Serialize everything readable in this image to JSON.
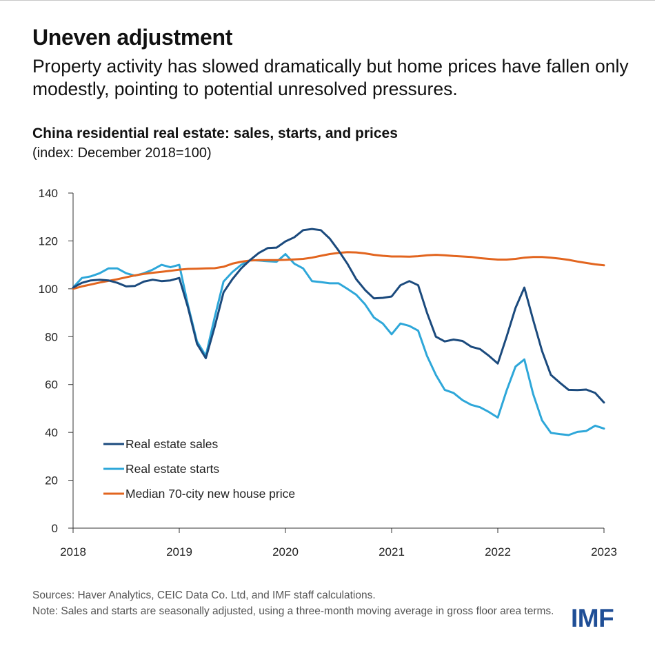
{
  "header": {
    "title": "Uneven adjustment",
    "subtitle": "Property activity has slowed dramatically but home prices have fallen only modestly, pointing to potential unresolved pressures."
  },
  "footer": {
    "sources": "Sources: Haver Analytics, CEIC Data Co. Ltd, and IMF staff calculations.",
    "note": "Note: Sales and starts are seasonally adjusted, using a three-month moving average in gross floor area terms.",
    "logo": "IMF"
  },
  "chart_data": {
    "type": "line",
    "title": "China residential real estate: sales, starts, and prices",
    "subtitle": "(index: December 2018=100)",
    "xlabel": "",
    "ylabel": "",
    "xlim": [
      2018,
      2023
    ],
    "ylim": [
      0,
      140
    ],
    "x_ticks": [
      "2018",
      "2019",
      "2020",
      "2021",
      "2022",
      "2023"
    ],
    "y_ticks": [
      "0",
      "20",
      "40",
      "60",
      "80",
      "100",
      "120",
      "140"
    ],
    "grid": false,
    "legend_position": "bottom-left",
    "series": [
      {
        "name": "Real estate sales",
        "color": "#1b4a7d",
        "x": [
          2018.0,
          2018.083,
          2018.167,
          2018.25,
          2018.333,
          2018.417,
          2018.5,
          2018.583,
          2018.667,
          2018.75,
          2018.833,
          2018.917,
          2019.0,
          2019.083,
          2019.167,
          2019.25,
          2019.333,
          2019.417,
          2019.5,
          2019.583,
          2019.667,
          2019.75,
          2019.833,
          2019.917,
          2020.0,
          2020.083,
          2020.167,
          2020.25,
          2020.333,
          2020.417,
          2020.5,
          2020.583,
          2020.667,
          2020.75,
          2020.833,
          2020.917,
          2021.0,
          2021.083,
          2021.167,
          2021.25,
          2021.333,
          2021.417,
          2021.5,
          2021.583,
          2021.667,
          2021.75,
          2021.833,
          2021.917,
          2022.0,
          2022.083,
          2022.167,
          2022.25,
          2022.333,
          2022.417,
          2022.5,
          2022.583,
          2022.667,
          2022.75,
          2022.833,
          2022.917,
          2023.0
        ],
        "values": [
          100.5,
          102.5,
          103.5,
          103.8,
          103.5,
          102.5,
          101.0,
          101.2,
          103.0,
          103.8,
          103.2,
          103.5,
          104.5,
          92.0,
          77.0,
          71.0,
          84.0,
          98.5,
          104.0,
          108.5,
          112.0,
          115.0,
          117.0,
          117.2,
          119.8,
          121.5,
          124.5,
          125.0,
          124.5,
          121.0,
          116.0,
          110.5,
          104.0,
          99.5,
          96.0,
          96.2,
          96.8,
          101.5,
          103.2,
          101.5,
          90.0,
          80.0,
          78.0,
          78.8,
          78.2,
          75.8,
          74.8,
          72.0,
          68.8,
          80.0,
          92.0,
          100.5,
          87.0,
          74.0,
          64.0,
          60.8,
          57.8,
          57.7,
          57.9,
          56.5,
          52.5
        ]
      },
      {
        "name": "Real estate starts",
        "color": "#2ea7d9",
        "x": [
          2018.0,
          2018.083,
          2018.167,
          2018.25,
          2018.333,
          2018.417,
          2018.5,
          2018.583,
          2018.667,
          2018.75,
          2018.833,
          2018.917,
          2019.0,
          2019.083,
          2019.167,
          2019.25,
          2019.333,
          2019.417,
          2019.5,
          2019.583,
          2019.667,
          2019.75,
          2019.833,
          2019.917,
          2020.0,
          2020.083,
          2020.167,
          2020.25,
          2020.333,
          2020.417,
          2020.5,
          2020.583,
          2020.667,
          2020.75,
          2020.833,
          2020.917,
          2021.0,
          2021.083,
          2021.167,
          2021.25,
          2021.333,
          2021.417,
          2021.5,
          2021.583,
          2021.667,
          2021.75,
          2021.833,
          2021.917,
          2022.0,
          2022.083,
          2022.167,
          2022.25,
          2022.333,
          2022.417,
          2022.5,
          2022.583,
          2022.667,
          2022.75,
          2022.833,
          2022.917,
          2023.0
        ],
        "values": [
          100.5,
          104.5,
          105.2,
          106.5,
          108.5,
          108.5,
          106.5,
          105.5,
          106.5,
          108.0,
          110.0,
          109.0,
          110.0,
          93.0,
          78.0,
          72.0,
          88.0,
          103.0,
          107.0,
          110.0,
          112.0,
          111.8,
          111.5,
          111.3,
          114.5,
          110.5,
          108.5,
          103.2,
          102.8,
          102.3,
          102.3,
          100.0,
          97.5,
          93.5,
          88.0,
          85.5,
          81.0,
          85.5,
          84.5,
          82.5,
          72.0,
          64.0,
          57.8,
          56.5,
          53.5,
          51.5,
          50.5,
          48.5,
          46.2,
          57.5,
          67.5,
          70.5,
          56.0,
          45.0,
          39.8,
          39.3,
          38.9,
          40.2,
          40.6,
          42.8,
          41.6
        ]
      },
      {
        "name": "Median 70-city new house price",
        "color": "#e2651f",
        "x": [
          2018.0,
          2018.083,
          2018.167,
          2018.25,
          2018.333,
          2018.417,
          2018.5,
          2018.583,
          2018.667,
          2018.75,
          2018.833,
          2018.917,
          2019.0,
          2019.083,
          2019.167,
          2019.25,
          2019.333,
          2019.417,
          2019.5,
          2019.583,
          2019.667,
          2019.75,
          2019.833,
          2019.917,
          2020.0,
          2020.083,
          2020.167,
          2020.25,
          2020.333,
          2020.417,
          2020.5,
          2020.583,
          2020.667,
          2020.75,
          2020.833,
          2020.917,
          2021.0,
          2021.083,
          2021.167,
          2021.25,
          2021.333,
          2021.417,
          2021.5,
          2021.583,
          2021.667,
          2021.75,
          2021.833,
          2021.917,
          2022.0,
          2022.083,
          2022.167,
          2022.25,
          2022.333,
          2022.417,
          2022.5,
          2022.583,
          2022.667,
          2022.75,
          2022.833,
          2022.917,
          2023.0
        ],
        "values": [
          100.0,
          101.0,
          101.8,
          102.6,
          103.3,
          104.0,
          104.8,
          105.6,
          106.2,
          106.7,
          107.1,
          107.5,
          108.0,
          108.3,
          108.4,
          108.5,
          108.6,
          109.2,
          110.5,
          111.3,
          111.8,
          112.0,
          112.0,
          112.0,
          112.1,
          112.3,
          112.5,
          113.0,
          113.8,
          114.5,
          115.0,
          115.3,
          115.2,
          114.8,
          114.2,
          113.8,
          113.5,
          113.5,
          113.4,
          113.6,
          114.0,
          114.2,
          114.0,
          113.7,
          113.5,
          113.3,
          112.8,
          112.5,
          112.2,
          112.2,
          112.5,
          113.0,
          113.3,
          113.3,
          113.0,
          112.6,
          112.1,
          111.4,
          110.8,
          110.2,
          109.8
        ]
      }
    ]
  }
}
